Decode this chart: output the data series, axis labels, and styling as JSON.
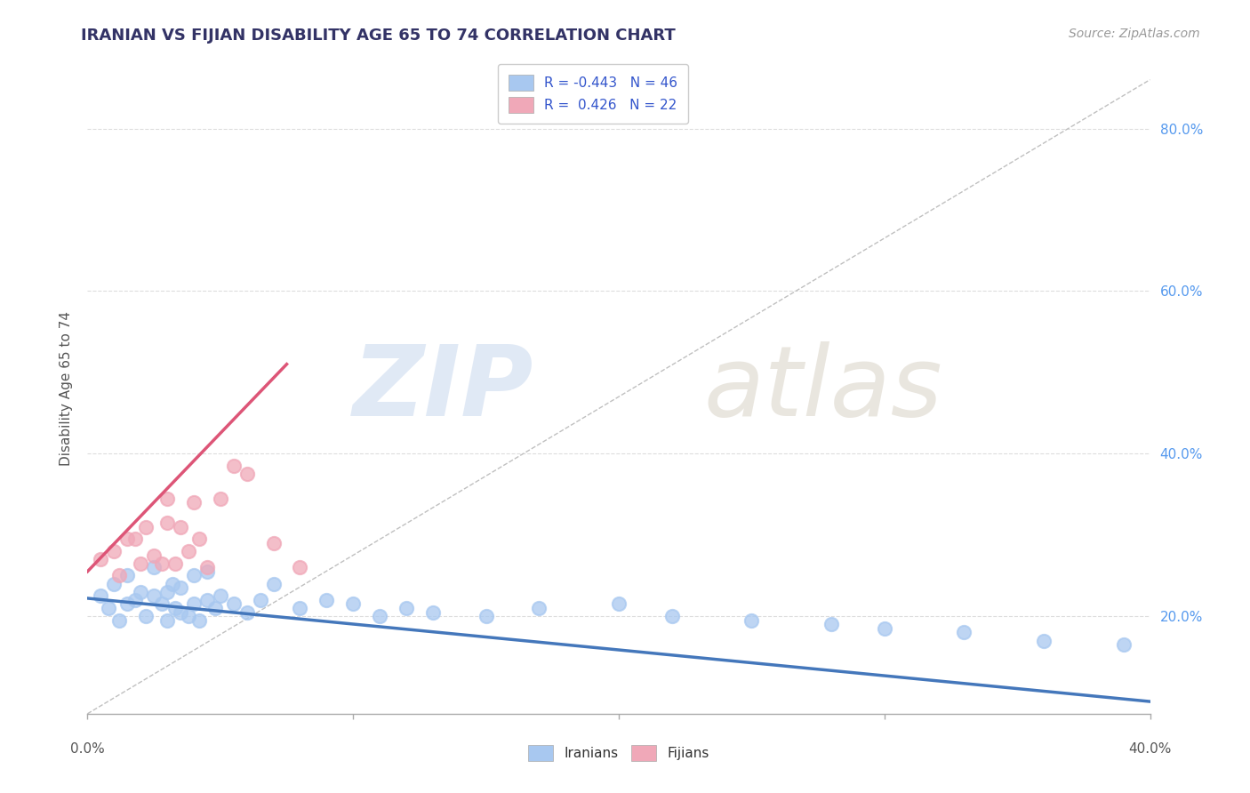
{
  "title": "IRANIAN VS FIJIAN DISABILITY AGE 65 TO 74 CORRELATION CHART",
  "source": "Source: ZipAtlas.com",
  "ylabel": "Disability Age 65 to 74",
  "xmin": 0.0,
  "xmax": 0.4,
  "ymin": 0.08,
  "ymax": 0.88,
  "legend_iranian_R": "-0.443",
  "legend_iranian_N": "46",
  "legend_fijian_R": "0.426",
  "legend_fijian_N": "22",
  "iranian_color": "#a8c8f0",
  "fijian_color": "#f0a8b8",
  "iranian_line_color": "#4477bb",
  "fijian_line_color": "#dd5577",
  "ref_line_color": "#c0c0c0",
  "title_color": "#333366",
  "source_color": "#999999",
  "background_color": "#ffffff",
  "plot_bg_color": "#ffffff",
  "grid_color": "#dddddd",
  "ytick_color": "#5599ee",
  "iranian_x": [
    0.005,
    0.008,
    0.01,
    0.012,
    0.015,
    0.015,
    0.018,
    0.02,
    0.022,
    0.025,
    0.025,
    0.028,
    0.03,
    0.03,
    0.032,
    0.033,
    0.035,
    0.035,
    0.038,
    0.04,
    0.04,
    0.042,
    0.045,
    0.045,
    0.048,
    0.05,
    0.055,
    0.06,
    0.065,
    0.07,
    0.08,
    0.09,
    0.1,
    0.11,
    0.12,
    0.13,
    0.15,
    0.17,
    0.2,
    0.22,
    0.25,
    0.28,
    0.3,
    0.33,
    0.36,
    0.39
  ],
  "iranian_y": [
    0.225,
    0.21,
    0.24,
    0.195,
    0.215,
    0.25,
    0.22,
    0.23,
    0.2,
    0.225,
    0.26,
    0.215,
    0.23,
    0.195,
    0.24,
    0.21,
    0.205,
    0.235,
    0.2,
    0.215,
    0.25,
    0.195,
    0.22,
    0.255,
    0.21,
    0.225,
    0.215,
    0.205,
    0.22,
    0.24,
    0.21,
    0.22,
    0.215,
    0.2,
    0.21,
    0.205,
    0.2,
    0.21,
    0.215,
    0.2,
    0.195,
    0.19,
    0.185,
    0.18,
    0.17,
    0.165
  ],
  "fijian_x": [
    0.005,
    0.01,
    0.012,
    0.015,
    0.018,
    0.02,
    0.022,
    0.025,
    0.028,
    0.03,
    0.03,
    0.033,
    0.035,
    0.038,
    0.04,
    0.042,
    0.045,
    0.05,
    0.055,
    0.06,
    0.07,
    0.08
  ],
  "fijian_y": [
    0.27,
    0.28,
    0.25,
    0.295,
    0.295,
    0.265,
    0.31,
    0.275,
    0.265,
    0.315,
    0.345,
    0.265,
    0.31,
    0.28,
    0.34,
    0.295,
    0.26,
    0.345,
    0.385,
    0.375,
    0.29,
    0.26
  ]
}
